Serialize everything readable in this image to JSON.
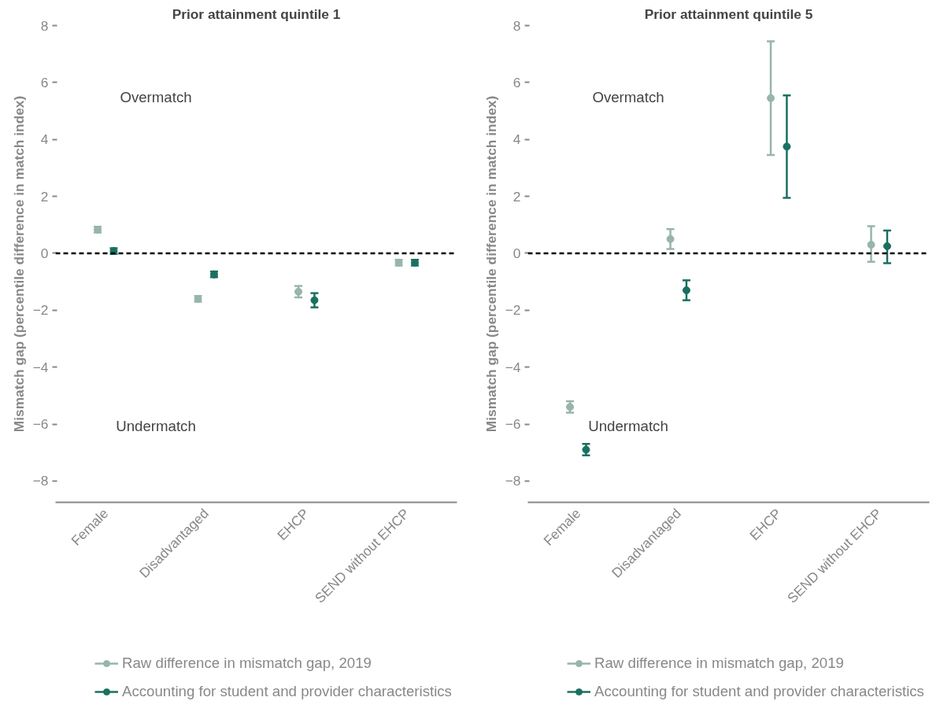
{
  "chart_data": [
    {
      "type": "scatter",
      "title": "Prior attainment quintile 1",
      "ylabel": "Mismatch gap (percentile difference in match index)",
      "categories": [
        "Female",
        "Disadvantaged",
        "EHCP",
        "SEND without EHCP"
      ],
      "series": [
        {
          "name": "Raw difference in mismatch gap, 2019",
          "color": "#97b5aa",
          "values": [
            0.83,
            -1.6,
            -1.35,
            -0.33
          ],
          "errors": [
            [
              0.73,
              0.93
            ],
            [
              -1.7,
              -1.5
            ],
            [
              -1.55,
              -1.15
            ],
            [
              -0.43,
              -0.23
            ]
          ]
        },
        {
          "name": "Accounting for student and provider characteristics",
          "color": "#1a7060",
          "values": [
            0.08,
            -0.74,
            -1.65,
            -0.33
          ],
          "errors": [
            [
              -0.02,
              0.18
            ],
            [
              -0.84,
              -0.64
            ],
            [
              -1.9,
              -1.4
            ],
            [
              -0.43,
              -0.23
            ]
          ]
        }
      ],
      "ylim": [
        -8.75,
        8
      ],
      "yticks": [
        -8,
        -6,
        -4,
        -2,
        0,
        2,
        4,
        6,
        8
      ],
      "annotations": [
        "Overmatch",
        "Undermatch"
      ],
      "ref_lines": [
        {
          "axis": "y",
          "value": 0,
          "color": "#000000",
          "line_style": "dashed"
        }
      ],
      "legend": "bottom",
      "marker": "circle",
      "grid": false
    },
    {
      "type": "scatter",
      "title": "Prior attainment quintile 5",
      "ylabel": "Mismatch gap (percentile difference in match index)",
      "categories": [
        "Female",
        "Disadvantaged",
        "EHCP",
        "SEND without EHCP"
      ],
      "series": [
        {
          "name": "Raw difference in mismatch gap, 2019",
          "color": "#97b5aa",
          "values": [
            -5.4,
            0.5,
            5.45,
            0.3
          ],
          "errors": [
            [
              -5.6,
              -5.2
            ],
            [
              0.15,
              0.85
            ],
            [
              3.45,
              7.45
            ],
            [
              -0.3,
              0.95
            ]
          ]
        },
        {
          "name": "Accounting for student and provider characteristics",
          "color": "#1a7060",
          "values": [
            -6.9,
            -1.3,
            3.75,
            0.25
          ],
          "errors": [
            [
              -7.1,
              -6.7
            ],
            [
              -1.65,
              -0.95
            ],
            [
              1.95,
              5.55
            ],
            [
              -0.35,
              0.8
            ]
          ]
        }
      ],
      "ylim": [
        -8.75,
        8
      ],
      "yticks": [
        -8,
        -6,
        -4,
        -2,
        0,
        2,
        4,
        6,
        8
      ],
      "annotations": [
        "Overmatch",
        "Undermatch"
      ],
      "ref_lines": [
        {
          "axis": "y",
          "value": 0,
          "color": "#000000",
          "line_style": "dashed"
        }
      ],
      "legend": "bottom",
      "marker": "circle",
      "grid": false
    }
  ]
}
